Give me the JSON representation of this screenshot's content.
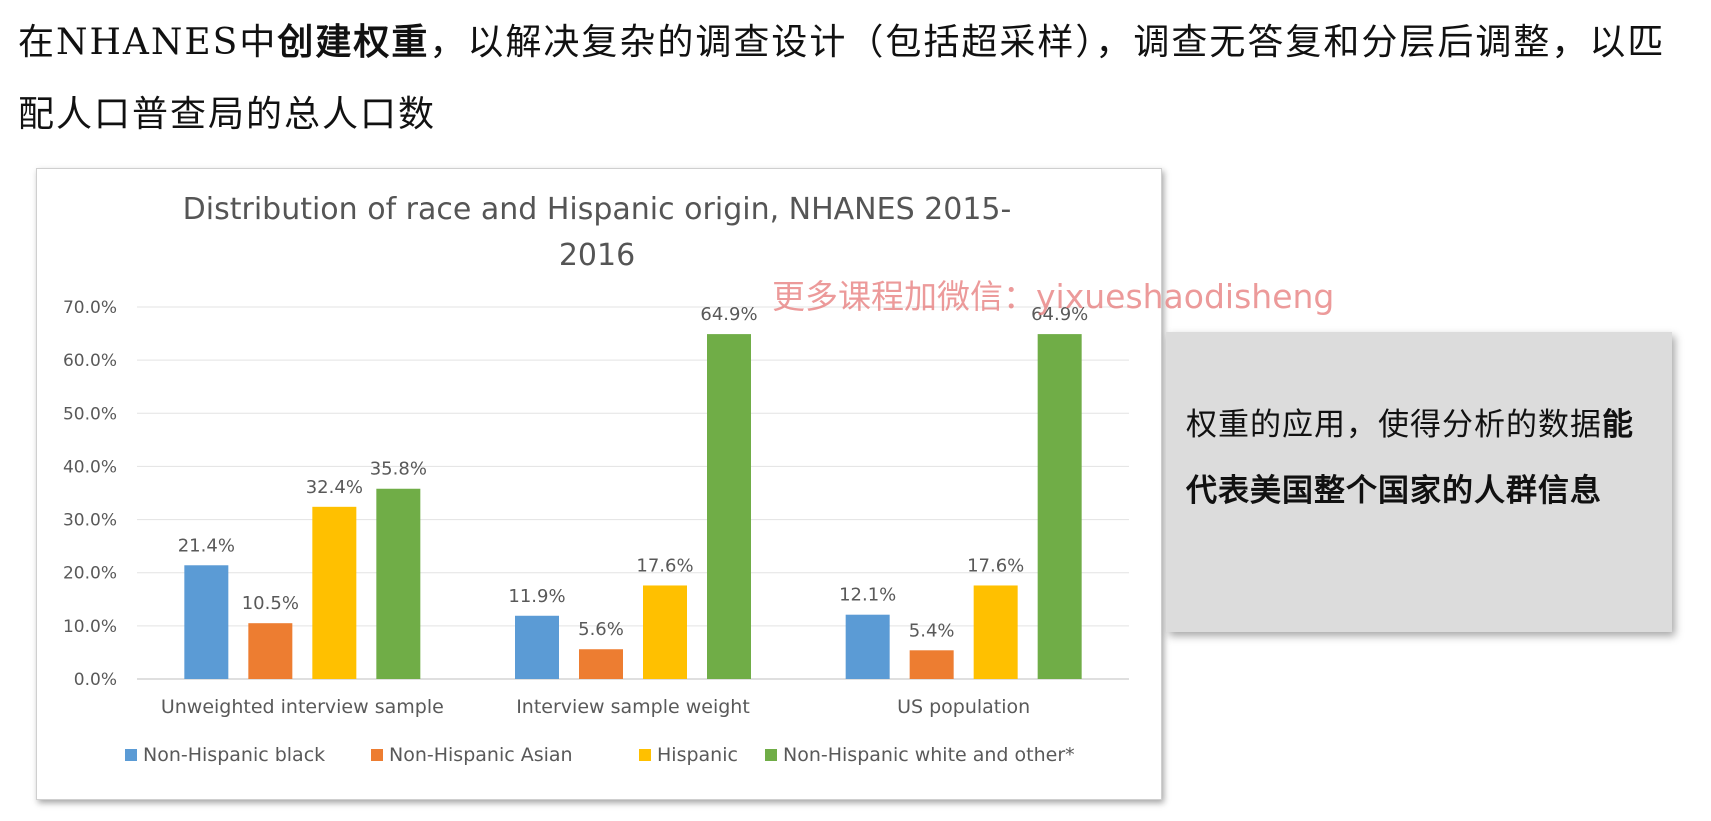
{
  "slide": {
    "heading_part1": "在NHANES中",
    "heading_bold": "创建权重",
    "heading_part2": "，以解决复杂的调查设计（包括超采样），调查无答复和分层后调整，以匹配人口普查局的总人口数",
    "note_part1": "权重的应用，使得分析的数据",
    "note_bold": "能代表美国整个国家的人群信息",
    "watermark": "更多课程加微信：yixueshaodisheng"
  },
  "chart_data": {
    "type": "bar",
    "title": "Distribution of race and Hispanic origin, NHANES 2015-2016",
    "title_lines": [
      "Distribution of race and Hispanic origin, NHANES 2015-",
      "2016"
    ],
    "categories": [
      "Unweighted interview sample",
      "Interview sample weight",
      "US population"
    ],
    "series": [
      {
        "name": "Non-Hispanic black",
        "color": "#5b9bd5",
        "values": [
          21.4,
          11.9,
          12.1
        ],
        "labels": [
          "21.4%",
          "11.9%",
          "12.1%"
        ]
      },
      {
        "name": "Non-Hispanic Asian",
        "color": "#ed7d31",
        "values": [
          10.5,
          5.6,
          5.4
        ],
        "labels": [
          "10.5%",
          "5.6%",
          "5.4%"
        ]
      },
      {
        "name": "Hispanic",
        "color": "#ffc000",
        "values": [
          32.4,
          17.6,
          17.6
        ],
        "labels": [
          "32.4%",
          "17.6%",
          "17.6%"
        ]
      },
      {
        "name": "Non-Hispanic white and other*",
        "color": "#70ad47",
        "values": [
          35.8,
          64.9,
          64.9
        ],
        "labels": [
          "35.8%",
          "64.9%",
          "64.9%"
        ]
      }
    ],
    "yticks": [
      "0.0%",
      "10.0%",
      "20.0%",
      "30.0%",
      "40.0%",
      "50.0%",
      "60.0%",
      "70.0%"
    ],
    "ylim": [
      0,
      70
    ],
    "grid": true,
    "legend": "bottom"
  }
}
